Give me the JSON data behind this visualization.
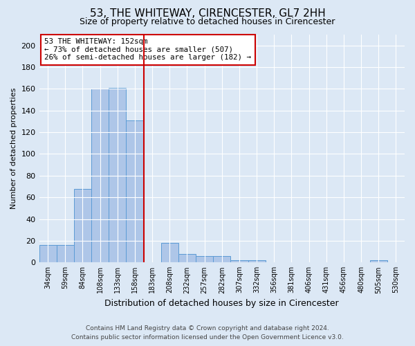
{
  "title": "53, THE WHITEWAY, CIRENCESTER, GL7 2HH",
  "subtitle": "Size of property relative to detached houses in Cirencester",
  "xlabel": "Distribution of detached houses by size in Cirencester",
  "ylabel": "Number of detached properties",
  "bar_labels": [
    "34sqm",
    "59sqm",
    "84sqm",
    "108sqm",
    "133sqm",
    "158sqm",
    "183sqm",
    "208sqm",
    "232sqm",
    "257sqm",
    "282sqm",
    "307sqm",
    "332sqm",
    "356sqm",
    "381sqm",
    "406sqm",
    "431sqm",
    "456sqm",
    "480sqm",
    "505sqm",
    "530sqm"
  ],
  "bar_values": [
    16,
    16,
    68,
    160,
    161,
    131,
    0,
    18,
    8,
    6,
    6,
    2,
    2,
    0,
    0,
    0,
    0,
    0,
    0,
    2,
    0
  ],
  "bar_color": "#aec6e8",
  "bar_edge_color": "#5b9bd5",
  "vline_x": 5.5,
  "vline_color": "#cc0000",
  "annotation_text": "53 THE WHITEWAY: 152sqm\n← 73% of detached houses are smaller (507)\n26% of semi-detached houses are larger (182) →",
  "annotation_box_color": "#ffffff",
  "annotation_box_edge": "#cc0000",
  "ylim": [
    0,
    210
  ],
  "yticks": [
    0,
    20,
    40,
    60,
    80,
    100,
    120,
    140,
    160,
    180,
    200
  ],
  "footer1": "Contains HM Land Registry data © Crown copyright and database right 2024.",
  "footer2": "Contains public sector information licensed under the Open Government Licence v3.0.",
  "bg_color": "#dce8f5",
  "plot_bg_color": "#dce8f5"
}
